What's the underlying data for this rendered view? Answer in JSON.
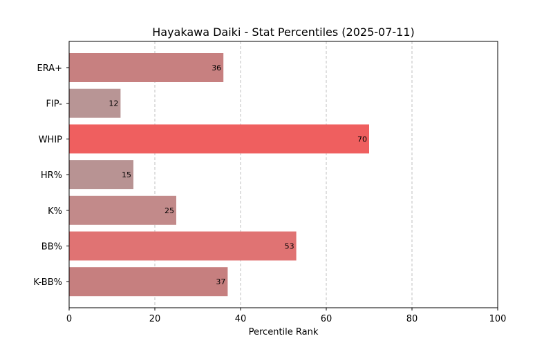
{
  "chart_data": {
    "type": "bar",
    "orientation": "horizontal",
    "title": "Hayakawa Daiki - Stat Percentiles (2025-07-11)",
    "xlabel": "Percentile Rank",
    "ylabel": "",
    "xlim": [
      0,
      100
    ],
    "xticks": [
      0,
      20,
      40,
      60,
      80,
      100
    ],
    "grid": "vertical dashed",
    "categories": [
      "ERA+",
      "FIP-",
      "WHIP",
      "HR%",
      "K%",
      "BB%",
      "K-BB%"
    ],
    "values": [
      36,
      12,
      70,
      15,
      25,
      53,
      37
    ],
    "colors": [
      "#c78080",
      "#b89595",
      "#ef5f5f",
      "#b89393",
      "#c28a8a",
      "#e07373",
      "#c67f7f"
    ]
  }
}
